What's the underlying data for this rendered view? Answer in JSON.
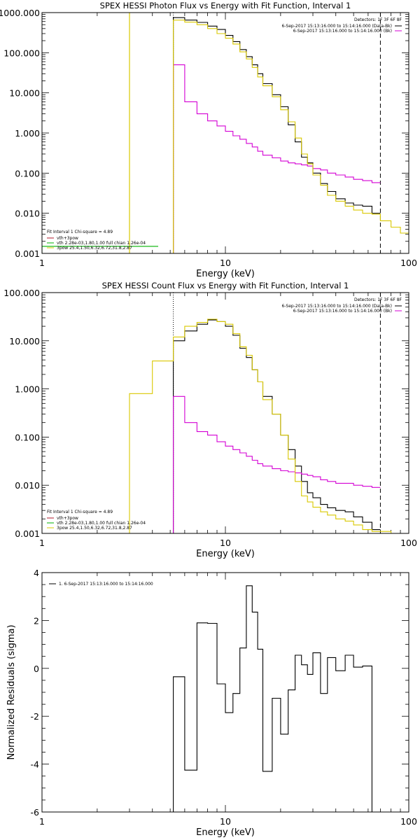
{
  "chart_data": [
    {
      "type": "line",
      "title": "SPEX HESSI Photon Flux vs Energy with Fit Function, Interval 1",
      "xlabel": "Energy (keV)",
      "ylabel": "",
      "xscale": "log",
      "yscale": "log",
      "xlim": [
        1,
        100
      ],
      "ylim": [
        0.001,
        1000
      ],
      "xticks": [
        "1",
        "10",
        "100"
      ],
      "yticks": [
        "0.001",
        "0.010",
        "0.100",
        "1.000",
        "10.000",
        "100.000",
        "1000.000"
      ],
      "legend_top_right": {
        "header": "Detectors: 1F 3F 6F 8F",
        "entries": [
          {
            "label": "6-Sep-2017 15:13:16.000 to 15:14:16.000 (Data-Bk)",
            "color": "#000000"
          },
          {
            "label": "6-Sep-2017 15:13:16.000 to 15:14:16.000 (Bk)",
            "color": "#d400d4"
          }
        ]
      },
      "legend_bottom_left": {
        "header": "Fit Interval 1    Chi-square = 4.89",
        "entries": [
          {
            "label": "vth+3pow",
            "color": "#b2182b"
          },
          {
            "label": "vth 2.28e-03,1.80,1.00  full chian 1.26e-04",
            "color": "#00b000"
          },
          {
            "label": "3pow 25.4,1.50,6.32,6.72,31.8,2.87",
            "color": "#d9c800"
          }
        ]
      },
      "vlines": [
        {
          "x": 5.2,
          "style": "dotted",
          "color": "#000000"
        },
        {
          "x": 70,
          "style": "dashed",
          "color": "#000000"
        }
      ],
      "series": [
        {
          "name": "6-Sep-2017 15:13:16.000 to 15:14:16.000 (Data-Bk)",
          "color": "#000000",
          "edges": [
            5.2,
            6,
            7,
            8,
            9,
            10,
            11,
            12,
            13,
            14,
            15,
            16,
            18,
            20,
            22,
            24,
            26,
            28,
            30,
            33,
            36,
            40,
            45,
            50,
            56,
            63,
            70
          ],
          "values": [
            750,
            650,
            570,
            460,
            380,
            270,
            190,
            120,
            80,
            50,
            30,
            17,
            9,
            4.5,
            1.6,
            0.6,
            0.25,
            0.18,
            0.1,
            0.055,
            0.035,
            0.023,
            0.018,
            0.016,
            0.015,
            0.01
          ]
        },
        {
          "name": "6-Sep-2017 15:13:16.000 to 15:14:16.000 (Bk)",
          "color": "#d400d4",
          "edges": [
            5.2,
            6,
            7,
            8,
            9,
            10,
            11,
            12,
            13,
            14,
            15,
            16,
            18,
            20,
            22,
            24,
            26,
            28,
            30,
            33,
            36,
            40,
            45,
            50,
            56,
            63,
            70
          ],
          "values": [
            50,
            6,
            3,
            2,
            1.5,
            1.1,
            0.85,
            0.7,
            0.55,
            0.45,
            0.35,
            0.28,
            0.24,
            0.2,
            0.18,
            0.17,
            0.16,
            0.15,
            0.13,
            0.12,
            0.1,
            0.09,
            0.08,
            0.07,
            0.065,
            0.058
          ]
        },
        {
          "name": "3pow 25.4,1.50,6.32,6.72,31.8,2.87",
          "color": "#d9c800",
          "edges": [
            5.2,
            6,
            7,
            8,
            9,
            10,
            11,
            12,
            13,
            14,
            15,
            16,
            18,
            20,
            22,
            24,
            26,
            28,
            30,
            33,
            36,
            40,
            45,
            50,
            56,
            63,
            70,
            80,
            90,
            100
          ],
          "values": [
            650,
            580,
            500,
            400,
            300,
            230,
            165,
            105,
            70,
            43,
            25,
            15,
            8,
            3.8,
            1.9,
            0.75,
            0.3,
            0.17,
            0.09,
            0.05,
            0.028,
            0.02,
            0.015,
            0.012,
            0.01,
            0.0095,
            0.0065,
            0.0045,
            0.0032
          ]
        },
        {
          "name": "vth 2.28e-03,1.80,1.00  full chian 1.26e-04",
          "color": "#00b000",
          "edges": [
            1,
            2,
            3,
            4,
            4.3
          ],
          "values": [
            0.0015,
            0.0015,
            0.0015,
            0.0015
          ]
        }
      ],
      "extra_lines": [
        {
          "color": "#d9c800",
          "points": [
            [
              3.0,
              0.001
            ],
            [
              3.0,
              1000
            ]
          ]
        }
      ]
    },
    {
      "type": "line",
      "title": "SPEX HESSI Count Flux vs Energy with Fit Function, Interval 1",
      "xlabel": "Energy (keV)",
      "ylabel": "",
      "xscale": "log",
      "yscale": "log",
      "xlim": [
        1,
        100
      ],
      "ylim": [
        0.001,
        100
      ],
      "xticks": [
        "1",
        "10",
        "100"
      ],
      "yticks": [
        "0.001",
        "0.010",
        "0.100",
        "1.000",
        "10.000",
        "100.000"
      ],
      "legend_top_right": {
        "header": "Detectors: 1F 3F 6F 8F",
        "entries": [
          {
            "label": "6-Sep-2017 15:13:16.000 to 15:14:16.000 (Data-Bk)",
            "color": "#000000"
          },
          {
            "label": "6-Sep-2017 15:13:16.000 to 15:14:16.000 (Bk)",
            "color": "#d400d4"
          }
        ]
      },
      "legend_bottom_left": {
        "header": "Fit Interval 1    Chi-square = 4.89",
        "entries": [
          {
            "label": "vth+3pow",
            "color": "#b2182b"
          },
          {
            "label": "vth 2.28e-03,1.80,1.00  full chian 1.26e-04",
            "color": "#00b000"
          },
          {
            "label": "3pow 25.4,1.50,6.32,6.72,31.8,2.87",
            "color": "#d9c800"
          }
        ]
      },
      "vlines": [
        {
          "x": 5.2,
          "style": "dotted",
          "color": "#000000"
        },
        {
          "x": 70,
          "style": "dashed",
          "color": "#000000"
        }
      ],
      "series": [
        {
          "name": "6-Sep-2017 15:13:16.000 to 15:14:16.000 (Data-Bk)",
          "color": "#000000",
          "edges": [
            5.2,
            6,
            7,
            8,
            9,
            10,
            11,
            12,
            13,
            14,
            15,
            16,
            18,
            20,
            22,
            24,
            26,
            28,
            30,
            33,
            36,
            40,
            45,
            50,
            56,
            63,
            70
          ],
          "values": [
            10,
            16,
            22,
            27,
            25,
            20,
            13,
            7,
            4.5,
            2.5,
            1.4,
            0.7,
            0.3,
            0.11,
            0.055,
            0.025,
            0.012,
            0.007,
            0.0055,
            0.004,
            0.0034,
            0.003,
            0.0028,
            0.0022,
            0.0017,
            0.0012
          ]
        },
        {
          "name": "6-Sep-2017 15:13:16.000 to 15:14:16.000 (Bk)",
          "color": "#d400d4",
          "edges": [
            5.2,
            6,
            7,
            8,
            9,
            10,
            11,
            12,
            13,
            14,
            15,
            16,
            18,
            20,
            22,
            24,
            26,
            28,
            30,
            33,
            36,
            40,
            45,
            50,
            56,
            63,
            70
          ],
          "values": [
            0.7,
            0.2,
            0.13,
            0.11,
            0.08,
            0.065,
            0.055,
            0.047,
            0.04,
            0.033,
            0.028,
            0.025,
            0.022,
            0.02,
            0.019,
            0.018,
            0.017,
            0.016,
            0.015,
            0.013,
            0.012,
            0.011,
            0.011,
            0.01,
            0.0095,
            0.009
          ]
        },
        {
          "name": "3pow 25.4,1.50,6.32,6.72,31.8,2.87",
          "color": "#d9c800",
          "edges": [
            3,
            4,
            5.2,
            6,
            7,
            8,
            9,
            10,
            11,
            12,
            13,
            14,
            15,
            16,
            18,
            20,
            22,
            24,
            26,
            28,
            30,
            33,
            36,
            40,
            45,
            50,
            56,
            63,
            70,
            80,
            90
          ],
          "values": [
            0.8,
            3.8,
            12,
            20,
            24,
            28,
            25,
            22,
            14,
            7.5,
            5,
            2.5,
            1.4,
            0.6,
            0.3,
            0.11,
            0.035,
            0.012,
            0.006,
            0.0045,
            0.0035,
            0.0028,
            0.0024,
            0.002,
            0.0018,
            0.0015,
            0.0012,
            0.0011,
            0.0011,
            0.001
          ]
        }
      ]
    },
    {
      "type": "line",
      "title": "",
      "xlabel": "Energy (keV)",
      "ylabel": "Normalized Residuals (sigma)",
      "xscale": "log",
      "yscale": "linear",
      "xlim": [
        1,
        100
      ],
      "ylim": [
        -6,
        4
      ],
      "xticks": [
        "1",
        "10",
        "100"
      ],
      "yticks": [
        "-6",
        "-4",
        "-2",
        "0",
        "2",
        "4"
      ],
      "legend": {
        "entries": [
          {
            "label": "1.  6-Sep-2017 15:13:16.000 to 15:14:16.000",
            "color": "#000000"
          }
        ]
      },
      "series": [
        {
          "name": "1.  6-Sep-2017 15:13:16.000 to 15:14:16.000",
          "color": "#000000",
          "edges": [
            5.2,
            6,
            7,
            8,
            9,
            10,
            11,
            12,
            13,
            14,
            15,
            16,
            18,
            20,
            22,
            24,
            26,
            28,
            30,
            33,
            36,
            40,
            45,
            50,
            56,
            63,
            70
          ],
          "values": [
            -0.35,
            -4.25,
            1.9,
            1.88,
            -0.65,
            -1.85,
            -1.05,
            0.85,
            3.45,
            2.35,
            0.8,
            -4.3,
            -1.25,
            -2.75,
            -0.9,
            0.55,
            0.15,
            -0.25,
            0.65,
            -1.05,
            0.45,
            -0.1,
            0.55,
            0.05,
            0.1,
            -6
          ]
        }
      ]
    }
  ]
}
